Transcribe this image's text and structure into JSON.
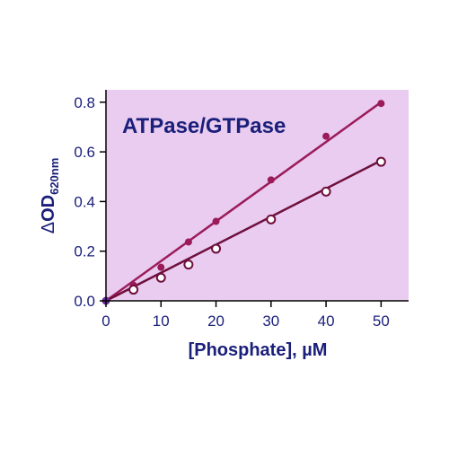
{
  "chart_data": {
    "type": "scatter",
    "title": "ATPase/GTPase",
    "xlabel": "[Phosphate], µM",
    "ylabel_delta": "Δ",
    "ylabel_main": "OD",
    "ylabel_sub": "620nm",
    "xlim": [
      0,
      55
    ],
    "ylim": [
      0,
      0.85
    ],
    "xticks": [
      "0",
      "10",
      "20",
      "30",
      "40",
      "50"
    ],
    "yticks": [
      "0.0",
      "0.2",
      "0.4",
      "0.6",
      "0.8"
    ],
    "xtick_values": [
      0,
      10,
      20,
      30,
      40,
      50
    ],
    "ytick_values": [
      0,
      0.2,
      0.4,
      0.6,
      0.8
    ],
    "grid": false,
    "background_color": "#e9ccf0",
    "series": [
      {
        "marker": "filled",
        "color": "#9b1b5a",
        "x": [
          0,
          5,
          10,
          15,
          20,
          30,
          40,
          50
        ],
        "y": [
          0.0,
          0.063,
          0.135,
          0.237,
          0.32,
          0.487,
          0.663,
          0.795
        ],
        "fit": [
          [
            0,
            0.0
          ],
          [
            50,
            0.8
          ]
        ]
      },
      {
        "marker": "open",
        "color": "#6e0f3c",
        "x": [
          0,
          5,
          10,
          15,
          20,
          30,
          40,
          50
        ],
        "y": [
          0.0,
          0.045,
          0.093,
          0.146,
          0.21,
          0.328,
          0.44,
          0.56
        ],
        "fit": [
          [
            0,
            0.0
          ],
          [
            50,
            0.565
          ]
        ]
      }
    ],
    "origin_marker_color": "#6a2a9a"
  }
}
